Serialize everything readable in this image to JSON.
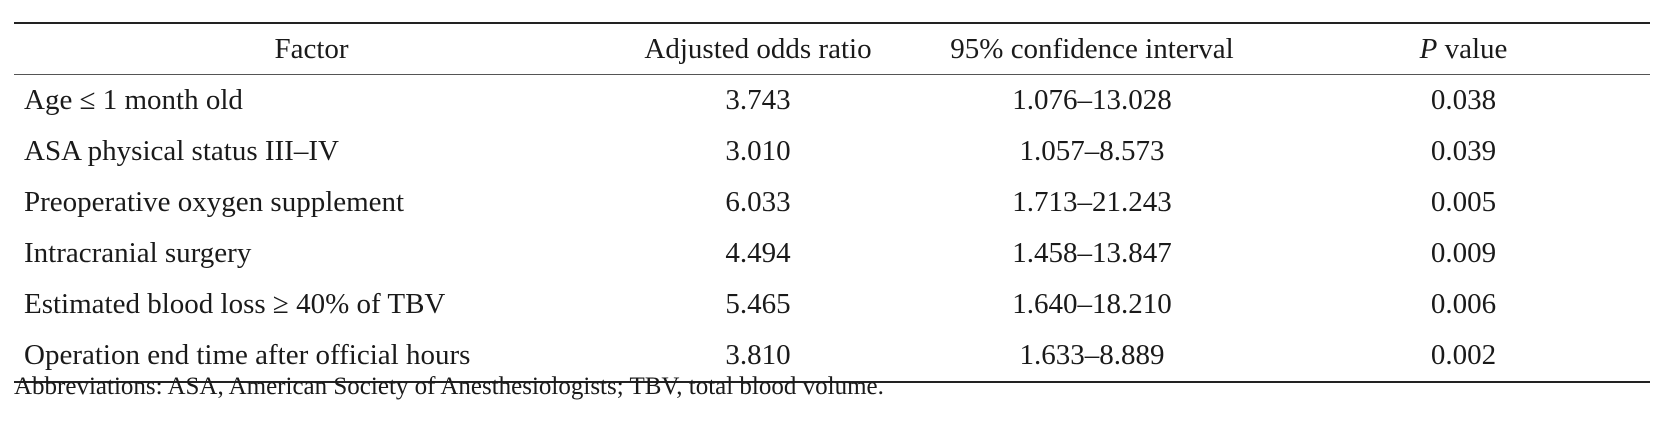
{
  "table": {
    "headers": {
      "factor": "Factor",
      "odds_ratio": "Adjusted odds ratio",
      "ci": "95% confidence interval",
      "p_italic": "P",
      "p_rest": " value"
    },
    "rows": [
      {
        "factor": "Age ≤ 1 month old",
        "or": "3.743",
        "ci": "1.076–13.028",
        "p": "0.038"
      },
      {
        "factor": "ASA physical status III–IV",
        "or": "3.010",
        "ci": "1.057–8.573",
        "p": "0.039"
      },
      {
        "factor": "Preoperative oxygen supplement",
        "or": "6.033",
        "ci": "1.713–21.243",
        "p": "0.005"
      },
      {
        "factor": "Intracranial surgery",
        "or": "4.494",
        "ci": "1.458–13.847",
        "p": "0.009"
      },
      {
        "factor": "Estimated blood loss ≥ 40% of TBV",
        "or": "5.465",
        "ci": "1.640–18.210",
        "p": "0.006"
      },
      {
        "factor": "Operation end time after official hours",
        "or": "3.810",
        "ci": "1.633–8.889",
        "p": "0.002"
      }
    ]
  },
  "footnote": "Abbreviations: ASA, American Society of Anesthesiologists; TBV, total blood volume."
}
